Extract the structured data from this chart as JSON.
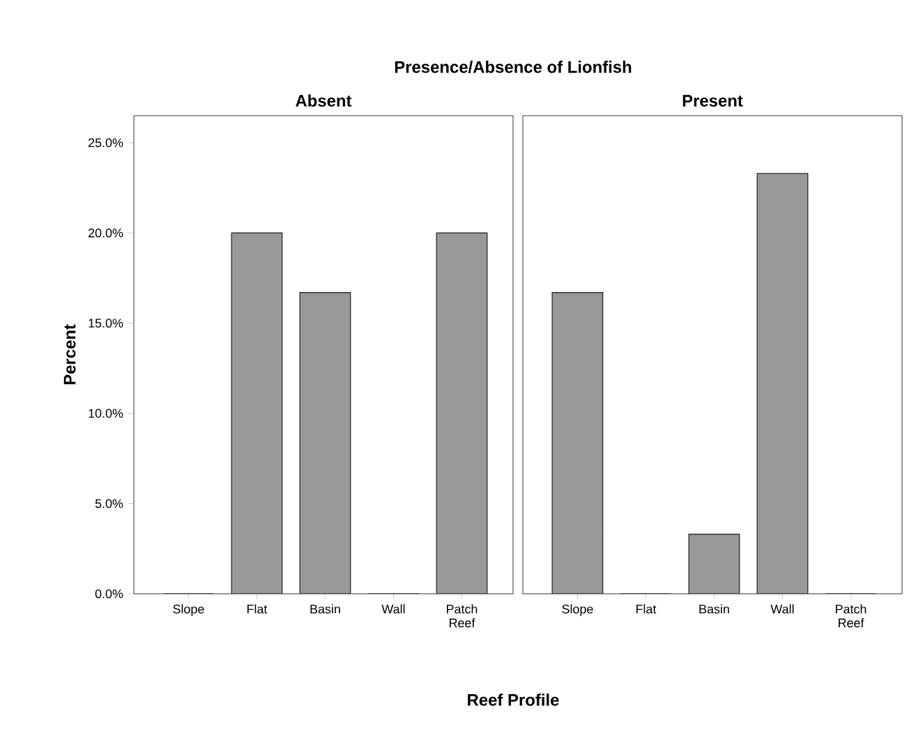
{
  "chart_data": [
    {
      "type": "bar",
      "title": "Presence/Absence of Lionfish",
      "subtitle": "Absent",
      "xlabel": "Reef Profile",
      "ylabel": "Percent",
      "categories": [
        "Slope",
        "Flat",
        "Basin",
        "Wall",
        "Patch Reef"
      ],
      "values": [
        0,
        20.0,
        16.7,
        0,
        20.0
      ],
      "color": "#999999",
      "ylim": [
        0,
        26.5
      ],
      "yticks": [
        {
          "value": 0,
          "label": "0.0%"
        },
        {
          "value": 5,
          "label": "5.0%"
        },
        {
          "value": 10,
          "label": "10.0%"
        },
        {
          "value": 15,
          "label": "15.0%"
        },
        {
          "value": 20,
          "label": "20.0%"
        },
        {
          "value": 25,
          "label": "25.0%"
        }
      ]
    },
    {
      "type": "bar",
      "subtitle": "Present",
      "categories": [
        "Slope",
        "Flat",
        "Basin",
        "Wall",
        "Patch Reef"
      ],
      "values": [
        16.7,
        0,
        3.3,
        23.3,
        0
      ],
      "color": "#999999",
      "ylim": [
        0,
        26.5
      ],
      "tick_labels": "x"
    }
  ]
}
